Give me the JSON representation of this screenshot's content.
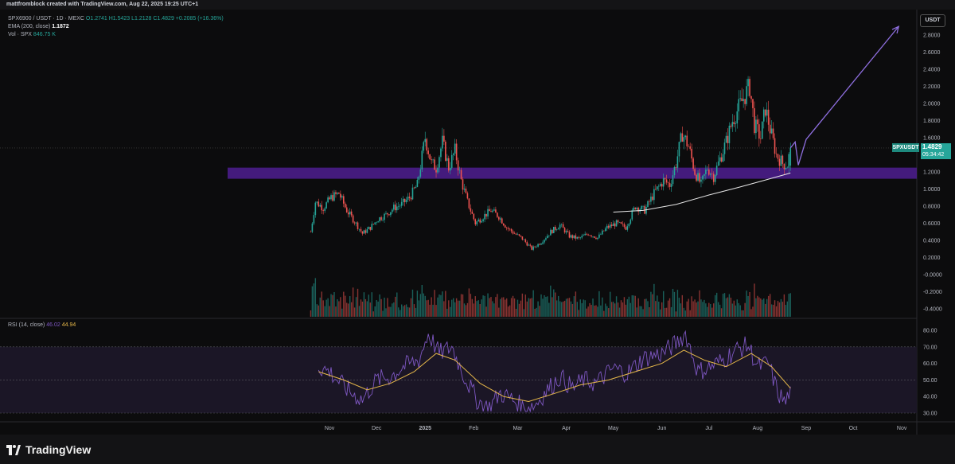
{
  "header": {
    "credit": "mattfromblock created with TradingView.com, Aug 22, 2025 19:25 UTC+1"
  },
  "legend": {
    "symbol": "SPX6900 / USDT · 1D · MEXC",
    "ohlc": "O1.2741 H1.5423 L1.2128 C1.4829 +0.2085 (+16.36%)",
    "ema_label": "EMA (200, close)",
    "ema_value": "1.1872",
    "vol_label": "Vol · SPX",
    "vol_value": "846.75 K",
    "rsi_label": "RSI (14, close)",
    "rsi_value_1": "46.02",
    "rsi_value_2": "44.94"
  },
  "currency_button": "USDT",
  "price_tag": {
    "symbol": "SPXUSDT",
    "price": "1.4829",
    "countdown": "05:34:42"
  },
  "brand": "TradingView",
  "colors": {
    "up": "#26a69a",
    "down": "#ef5350",
    "zone": "#4a1d8a",
    "ema": "#e8e8e8",
    "rsi": "#7e57c2",
    "rsi_ma": "#e6b84a",
    "arrow": "#8f6fe0"
  },
  "chart_data": [
    {
      "type": "candlestick",
      "title": "SPX6900 / USDT · 1D · MEXC",
      "x_ticks": [
        "Nov",
        "Dec",
        "2025",
        "Feb",
        "Mar",
        "Apr",
        "May",
        "Jun",
        "Jul",
        "Aug",
        "Sep",
        "Oct",
        "Nov"
      ],
      "y_ticks": [
        "2.8000",
        "2.6000",
        "2.4000",
        "2.2000",
        "2.0000",
        "1.8000",
        "1.6000",
        "1.4000",
        "1.2000",
        "1.0000",
        "0.8000",
        "0.6000",
        "0.4000",
        "0.2000",
        "-0.0000",
        "-0.2000",
        "-0.4000"
      ],
      "y_values": [
        2.8,
        2.6,
        2.4,
        2.2,
        2.0,
        1.8,
        1.6,
        1.4,
        1.2,
        1.0,
        0.8,
        0.6,
        0.4,
        0.2,
        0,
        -0.2,
        -0.4
      ],
      "ylim": [
        -0.45,
        2.95
      ],
      "close_path": [
        [
          "Oct 20",
          0.5
        ],
        [
          "Oct 23",
          0.85
        ],
        [
          "Oct 28",
          0.78
        ],
        [
          "Nov 2",
          0.9
        ],
        [
          "Nov 7",
          0.95
        ],
        [
          "Nov 12",
          0.75
        ],
        [
          "Nov 17",
          0.62
        ],
        [
          "Nov 22",
          0.48
        ],
        [
          "Nov 27",
          0.55
        ],
        [
          "Dec 2",
          0.65
        ],
        [
          "Dec 7",
          0.7
        ],
        [
          "Dec 12",
          0.78
        ],
        [
          "Dec 17",
          0.82
        ],
        [
          "Dec 22",
          0.9
        ],
        [
          "Dec 27",
          1.05
        ],
        [
          "Jan 1",
          1.6
        ],
        [
          "Jan 5",
          1.3
        ],
        [
          "Jan 8",
          1.25
        ],
        [
          "Jan 12",
          1.55
        ],
        [
          "Jan 16",
          1.25
        ],
        [
          "Jan 20",
          1.45
        ],
        [
          "Jan 24",
          1.1
        ],
        [
          "Jan 28",
          0.85
        ],
        [
          "Feb 2",
          0.6
        ],
        [
          "Feb 7",
          0.68
        ],
        [
          "Feb 12",
          0.75
        ],
        [
          "Feb 17",
          0.68
        ],
        [
          "Feb 22",
          0.55
        ],
        [
          "Feb 27",
          0.48
        ],
        [
          "Mar 4",
          0.42
        ],
        [
          "Mar 10",
          0.3
        ],
        [
          "Mar 16",
          0.38
        ],
        [
          "Mar 22",
          0.5
        ],
        [
          "Mar 28",
          0.58
        ],
        [
          "Apr 3",
          0.45
        ],
        [
          "Apr 9",
          0.42
        ],
        [
          "Apr 15",
          0.48
        ],
        [
          "Apr 21",
          0.43
        ],
        [
          "Apr 27",
          0.55
        ],
        [
          "May 3",
          0.6
        ],
        [
          "May 9",
          0.55
        ],
        [
          "May 15",
          0.8
        ],
        [
          "May 21",
          0.75
        ],
        [
          "May 27",
          0.95
        ],
        [
          "Jun 2",
          1.1
        ],
        [
          "Jun 6",
          1.05
        ],
        [
          "Jun 10",
          1.3
        ],
        [
          "Jun 14",
          1.65
        ],
        [
          "Jun 18",
          1.5
        ],
        [
          "Jun 22",
          1.2
        ],
        [
          "Jun 26",
          1.05
        ],
        [
          "Jun 30",
          1.25
        ],
        [
          "Jul 4",
          1.15
        ],
        [
          "Jul 8",
          1.35
        ],
        [
          "Jul 12",
          1.55
        ],
        [
          "Jul 16",
          1.8
        ],
        [
          "Jul 20",
          1.95
        ],
        [
          "Jul 24",
          2.1
        ],
        [
          "Jul 27",
          2.2
        ],
        [
          "Jul 30",
          1.75
        ],
        [
          "Aug 3",
          1.6
        ],
        [
          "Aug 6",
          1.95
        ],
        [
          "Aug 9",
          1.7
        ],
        [
          "Aug 13",
          1.4
        ],
        [
          "Aug 17",
          1.3
        ],
        [
          "Aug 20",
          1.28
        ],
        [
          "Aug 22",
          1.48
        ]
      ],
      "ema_200": [
        [
          "May 1",
          0.73
        ],
        [
          "May 20",
          0.75
        ],
        [
          "Jun 10",
          0.82
        ],
        [
          "Jul 1",
          0.93
        ],
        [
          "Jul 20",
          1.02
        ],
        [
          "Aug 5",
          1.1
        ],
        [
          "Aug 22",
          1.187
        ]
      ],
      "support_zone": [
        1.12,
        1.25
      ],
      "projection_arrow": [
        [
          "Aug 22",
          1.48
        ],
        [
          "Aug 25",
          1.55
        ],
        [
          "Aug 27",
          1.28
        ],
        [
          "Sep 1",
          1.58
        ],
        [
          "Oct 30",
          2.9
        ]
      ]
    },
    {
      "type": "bar",
      "title": "Vol · SPX",
      "last_value": "846.75 K"
    },
    {
      "type": "line",
      "title": "RSI (14, close)",
      "y_ticks": [
        "80.00",
        "70.00",
        "60.00",
        "50.00",
        "40.00",
        "30.00"
      ],
      "y_values": [
        80,
        70,
        60,
        50,
        40,
        30
      ],
      "ylim": [
        27,
        83
      ],
      "bands": [
        30,
        50,
        70
      ],
      "rsi": [
        [
          "Oct 25",
          58
        ],
        [
          "Nov 1",
          55
        ],
        [
          "Nov 8",
          48
        ],
        [
          "Nov 15",
          42
        ],
        [
          "Nov 22",
          38
        ],
        [
          "Dec 1",
          50
        ],
        [
          "Dec 10",
          52
        ],
        [
          "Dec 18",
          58
        ],
        [
          "Dec 28",
          62
        ],
        [
          "Jan 3",
          78
        ],
        [
          "Jan 10",
          66
        ],
        [
          "Jan 18",
          70
        ],
        [
          "Jan 26",
          52
        ],
        [
          "Feb 3",
          38
        ],
        [
          "Feb 10",
          33
        ],
        [
          "Feb 18",
          42
        ],
        [
          "Feb 26",
          38
        ],
        [
          "Mar 5",
          33
        ],
        [
          "Mar 12",
          35
        ],
        [
          "Mar 20",
          44
        ],
        [
          "Mar 28",
          52
        ],
        [
          "Apr 5",
          45
        ],
        [
          "Apr 12",
          50
        ],
        [
          "Apr 20",
          48
        ],
        [
          "May 1",
          57
        ],
        [
          "May 10",
          54
        ],
        [
          "May 20",
          63
        ],
        [
          "Jun 1",
          66
        ],
        [
          "Jun 10",
          72
        ],
        [
          "Jun 16",
          78
        ],
        [
          "Jun 24",
          55
        ],
        [
          "Jul 2",
          58
        ],
        [
          "Jul 10",
          62
        ],
        [
          "Jul 18",
          68
        ],
        [
          "Jul 26",
          71
        ],
        [
          "Aug 1",
          58
        ],
        [
          "Aug 8",
          60
        ],
        [
          "Aug 14",
          42
        ],
        [
          "Aug 19",
          36
        ],
        [
          "Aug 22",
          46
        ]
      ],
      "rsi_ma": [
        [
          "Oct 25",
          55
        ],
        [
          "Nov 10",
          50
        ],
        [
          "Nov 25",
          44
        ],
        [
          "Dec 10",
          48
        ],
        [
          "Dec 25",
          55
        ],
        [
          "Jan 8",
          66
        ],
        [
          "Jan 20",
          62
        ],
        [
          "Feb 5",
          48
        ],
        [
          "Feb 20",
          40
        ],
        [
          "Mar 8",
          37
        ],
        [
          "Mar 25",
          42
        ],
        [
          "Apr 10",
          47
        ],
        [
          "Apr 28",
          50
        ],
        [
          "May 15",
          55
        ],
        [
          "Jun 1",
          60
        ],
        [
          "Jun 15",
          68
        ],
        [
          "Jun 28",
          62
        ],
        [
          "Jul 12",
          58
        ],
        [
          "Jul 28",
          66
        ],
        [
          "Aug 10",
          58
        ],
        [
          "Aug 22",
          45
        ]
      ]
    }
  ]
}
